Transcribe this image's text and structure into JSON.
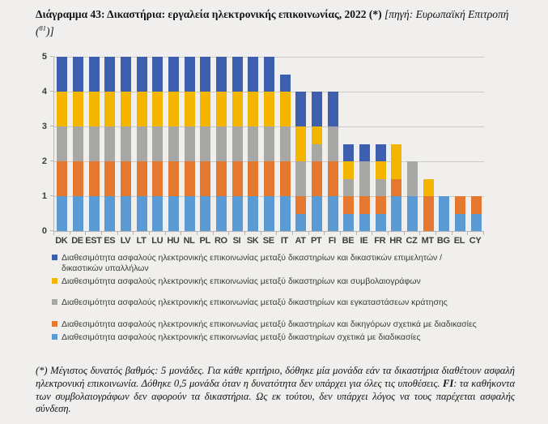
{
  "page": {
    "background": "#f0efed"
  },
  "title": {
    "main": "Διάγραμμα 43: Δικαστήρια: εργαλεία ηλεκτρονικής επικοινωνίας, 2022",
    "asterisk": " (*) ",
    "source_prefix": "[πηγή: Ευρωπαϊκή Επιτροπή (",
    "source_superscript": "81",
    "source_suffix": ")]"
  },
  "chart_data": {
    "type": "bar",
    "stacked": true,
    "grid": true,
    "ylim": [
      0,
      5
    ],
    "yticks": [
      0,
      1,
      2,
      3,
      4,
      5
    ],
    "legend_position": "bottom-left",
    "max_score_note": "Μέγιστος δυνατός βαθμός: 5 μονάδες",
    "categories": [
      "DK",
      "DE",
      "EST",
      "ES",
      "LV",
      "LT",
      "LU",
      "HU",
      "NL",
      "PL",
      "RO",
      "SI",
      "SK",
      "SE",
      "IT",
      "AT",
      "PT",
      "FI",
      "BE",
      "IE",
      "FR",
      "HR",
      "CZ",
      "MT",
      "BG",
      "EL",
      "CY"
    ],
    "series": [
      {
        "id": "courts-procedures",
        "name": "Διαθεσιμότητα ασφαλούς ηλεκτρονικής επικοινωνίας μεταξύ δικαστηρίων σχετικά με διαδικασίες",
        "color": "#5B9BD5",
        "values": [
          1,
          1,
          1,
          1,
          1,
          1,
          1,
          1,
          1,
          1,
          1,
          1,
          1,
          1,
          1,
          0.5,
          1,
          1,
          0.5,
          0.5,
          0.5,
          1,
          1,
          0,
          1,
          0.5,
          0.5
        ]
      },
      {
        "id": "lawyers",
        "name": "Διαθεσιμότητα ασφαλούς ηλεκτρονικής επικοινωνίας μεταξύ δικαστηρίων και δικηγόρων σχετικά με διαδικασίες",
        "color": "#E5782F",
        "values": [
          1,
          1,
          1,
          1,
          1,
          1,
          1,
          1,
          1,
          1,
          1,
          1,
          1,
          1,
          1,
          0.5,
          1,
          1,
          0.5,
          0.5,
          0.5,
          0.5,
          0,
          1,
          0,
          0.5,
          0.5
        ]
      },
      {
        "id": "detention-facilities",
        "name": "Διαθεσιμότητα ασφαλούς ηλεκτρονικής επικοινωνίας μεταξύ δικαστηρίων και εγκαταστάσεων κράτησης",
        "color": "#A7A7A5",
        "values": [
          1,
          1,
          1,
          1,
          1,
          1,
          1,
          1,
          1,
          1,
          1,
          1,
          1,
          1,
          1,
          1,
          0.5,
          1,
          0.5,
          1,
          0.5,
          0,
          1,
          0,
          0,
          0,
          0
        ]
      },
      {
        "id": "notaries",
        "name": "Διαθεσιμότητα ασφαλούς ηλεκτρονικής επικοινωνίας μεταξύ δικαστηρίων και συμβολαιογράφων",
        "color": "#F3B500",
        "values": [
          1,
          1,
          1,
          1,
          1,
          1,
          1,
          1,
          1,
          1,
          1,
          1,
          1,
          1,
          1,
          1,
          0.5,
          0,
          0.5,
          0,
          0.5,
          1,
          0,
          0.5,
          0,
          0,
          0
        ]
      },
      {
        "id": "bailiffs-court-staff",
        "name": "Διαθεσιμότητα ασφαλούς ηλεκτρονικής επικοινωνίας μεταξύ δικαστηρίων και δικαστικών επιμελητών / δικαστικών υπαλλήλων",
        "color": "#3D5FAE",
        "values": [
          1,
          1,
          1,
          1,
          1,
          1,
          1,
          1,
          1,
          1,
          1,
          1,
          1,
          1,
          0.5,
          1,
          1,
          1,
          0.5,
          0.5,
          0.5,
          0,
          0,
          0,
          0,
          0,
          0
        ]
      }
    ]
  },
  "footnote": {
    "text_before_fi": "(*) Μέγιστος δυνατός βαθμός: 5 μονάδες. Για κάθε κριτήριο, δόθηκε μία μονάδα εάν τα δικαστήρια διαθέτουν ασφαλή ηλεκτρονική επικοινωνία. Δόθηκε 0,5 μονάδα όταν η δυνατότητα δεν υπάρχει για όλες τις υποθέσεις. ",
    "fi_label": "FI",
    "text_after_fi": ": τα καθήκοντα των συμβολαιογράφων δεν αφορούν τα δικαστήρια. Ως εκ τούτου, δεν υπάρχει λόγος να τους παρέχεται ασφαλής σύνδεση."
  }
}
